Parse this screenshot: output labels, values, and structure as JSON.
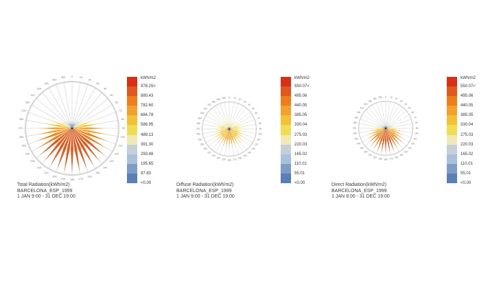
{
  "page": {
    "background": "#ffffff"
  },
  "colors": {
    "ramp_low_to_high": [
      "#5a7fb5",
      "#7f9cc7",
      "#a9c0dd",
      "#c5cfda",
      "#eeeab8",
      "#f1dd55",
      "#f3c136",
      "#f2a12c",
      "#ec7f19",
      "#e0581c",
      "#d92f14"
    ],
    "grid_line": "#c9c9c9",
    "outer_circle": "#d6d6d6",
    "degree_label": "#777777",
    "center_dot": "#333333",
    "title_text": "#3c3c3c"
  },
  "chart_data": [
    {
      "type": "radial-rose",
      "title": "Total Radiation(kWh/m2)",
      "location": "BARCELONA_ESP_1999",
      "period": "1 JAN 9:00 - 31 DEC 19:00",
      "legend_title": "kWh/m2",
      "legend_labels_top_to_bottom": [
        "978.25<",
        "880.43",
        "782.60",
        "684.78",
        "586.95",
        "489.13",
        "391.30",
        "293.48",
        "195.65",
        "97.83",
        "<0.00"
      ],
      "scale_max": 978.25,
      "directions_deg": [
        0,
        10,
        20,
        30,
        40,
        50,
        60,
        70,
        80,
        90,
        100,
        110,
        120,
        130,
        140,
        150,
        160,
        170,
        180,
        190,
        200,
        210,
        220,
        230,
        240,
        250,
        260,
        270,
        280,
        290,
        300,
        310,
        320,
        330,
        340,
        350
      ],
      "values_kwh_m2": [
        150,
        152,
        158,
        172,
        205,
        300,
        420,
        520,
        590,
        690,
        740,
        790,
        830,
        885,
        900,
        912,
        920,
        925,
        928,
        925,
        920,
        912,
        900,
        885,
        830,
        790,
        740,
        690,
        590,
        520,
        420,
        300,
        205,
        172,
        158,
        152
      ]
    },
    {
      "type": "radial-rose",
      "title": "Diffuse Radiation(kWh/m2)",
      "location": "BARCELONA_ESP_1999",
      "period": "1 JAN 9:00 - 31 DEC 19:00",
      "legend_title": "kWh/m2",
      "legend_labels_top_to_bottom": [
        "550.07<",
        "495.06",
        "440.05",
        "385.05",
        "330.04",
        "275.03",
        "220.03",
        "165.02",
        "110.01",
        "55.01",
        "<0.00"
      ],
      "scale_max": 550.07,
      "directions_deg": [
        0,
        10,
        20,
        30,
        40,
        50,
        60,
        70,
        80,
        90,
        100,
        110,
        120,
        130,
        140,
        150,
        160,
        170,
        180,
        190,
        200,
        210,
        220,
        230,
        240,
        250,
        260,
        270,
        280,
        290,
        300,
        310,
        320,
        330,
        340,
        350
      ],
      "values_kwh_m2": [
        248,
        249,
        251,
        254,
        259,
        266,
        275,
        286,
        298,
        311,
        324,
        337,
        350,
        361,
        371,
        379,
        386,
        390,
        392,
        390,
        386,
        379,
        371,
        361,
        350,
        337,
        324,
        311,
        298,
        286,
        275,
        266,
        259,
        254,
        251,
        249
      ]
    },
    {
      "type": "radial-rose",
      "title": "Direct Radiation(kWh/m2)",
      "location": "BARCELONA_ESP_1999",
      "period": "1 JAN 9:00 - 31 DEC 19:00",
      "legend_title": "kWh/m2",
      "legend_labels_top_to_bottom": [
        "550.07<",
        "495.06",
        "440.05",
        "385.05",
        "330.04",
        "275.03",
        "220.03",
        "165.02",
        "110.01",
        "55.01",
        "<0.00"
      ],
      "scale_max": 550.07,
      "directions_deg": [
        0,
        10,
        20,
        30,
        40,
        50,
        60,
        70,
        80,
        90,
        100,
        110,
        120,
        130,
        140,
        150,
        160,
        170,
        180,
        190,
        200,
        210,
        220,
        230,
        240,
        250,
        260,
        270,
        280,
        290,
        300,
        310,
        320,
        330,
        340,
        350
      ],
      "values_kwh_m2": [
        25,
        25,
        28,
        35,
        50,
        80,
        130,
        190,
        245,
        295,
        345,
        395,
        430,
        460,
        480,
        495,
        505,
        510,
        512,
        510,
        505,
        495,
        480,
        460,
        430,
        395,
        345,
        295,
        245,
        190,
        130,
        80,
        50,
        35,
        28,
        25
      ]
    }
  ]
}
